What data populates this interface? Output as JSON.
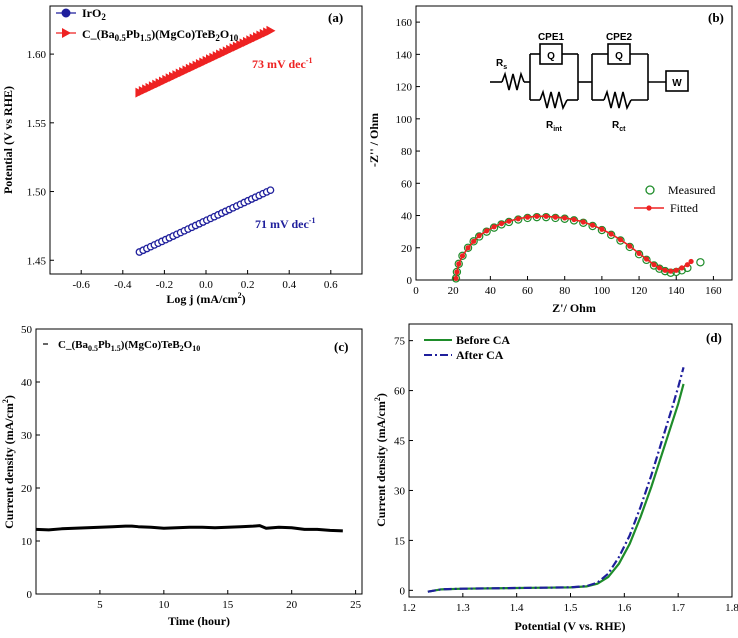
{
  "colors": {
    "navy": "#1f1f9c",
    "red": "#ee2222",
    "green": "#1e8c2a",
    "black": "#000000"
  },
  "chart_data": [
    {
      "id": "a",
      "type": "scatter",
      "panel_label": "(a)",
      "xlabel": "Log j (mA/cm",
      "xlabel_sup": "2",
      "xlabel_end": ")",
      "ylabel": "Potential (V vs RHE)",
      "xlim": [
        -0.75,
        0.75
      ],
      "ylim": [
        1.44,
        1.635
      ],
      "xticks": [
        "-0.6",
        "-0.4",
        "-0.2",
        "0.0",
        "0.2",
        "0.4",
        "0.6"
      ],
      "xtick_values": [
        -0.6,
        -0.4,
        -0.2,
        0.0,
        0.2,
        0.4,
        0.6
      ],
      "yticks": [
        "1.45",
        "1.50",
        "1.55",
        "1.60"
      ],
      "ytick_values": [
        1.45,
        1.5,
        1.55,
        1.6
      ],
      "series": [
        {
          "name": "IrO",
          "name_sub": "2",
          "color": "#1f1f9c",
          "marker": "circle",
          "x_start": -0.32,
          "y_start": 1.456,
          "x_end": 0.31,
          "y_end": 1.501,
          "n_points": 36,
          "annotation": "71 mV dec",
          "annotation_sup": "-1"
        },
        {
          "name": "C_(Ba0.5Pb1.5)(MgCo)TeB2O10",
          "color": "#ee2222",
          "marker": "triangle-right",
          "x_start": -0.32,
          "y_start": 1.572,
          "x_end": 0.31,
          "y_end": 1.617,
          "n_points": 40,
          "annotation": "73 mV dec",
          "annotation_sup": "-1"
        }
      ]
    },
    {
      "id": "b",
      "type": "scatter",
      "panel_label": "(b)",
      "xlabel": "Z'/ Ohm",
      "ylabel": "-Z'' / Ohm",
      "xlim": [
        0,
        170
      ],
      "ylim": [
        0,
        170
      ],
      "xticks": [
        "0",
        "20",
        "40",
        "60",
        "80",
        "100",
        "120",
        "140",
        "160"
      ],
      "xtick_values": [
        0,
        20,
        40,
        60,
        80,
        100,
        120,
        140,
        160
      ],
      "yticks": [
        "0",
        "20",
        "40",
        "60",
        "80",
        "100",
        "120",
        "140",
        "160"
      ],
      "ytick_values": [
        0,
        20,
        40,
        60,
        80,
        100,
        120,
        140,
        160
      ],
      "series": [
        {
          "name": "Measured",
          "color": "#1e8c2a",
          "marker": "open-circle",
          "x": [
            21.5,
            22,
            23,
            25,
            28,
            31,
            34,
            38,
            42,
            46,
            50,
            55,
            60,
            65,
            70,
            75,
            80,
            85,
            90,
            95,
            100,
            105,
            110,
            115,
            120,
            124,
            128,
            131,
            134,
            137,
            140,
            143,
            146,
            153
          ],
          "y": [
            1,
            5,
            10,
            15,
            20,
            24,
            27,
            30,
            32.5,
            34.5,
            36,
            37.5,
            38.5,
            39,
            39,
            38.5,
            38,
            37,
            35.5,
            33.5,
            31,
            28,
            24.5,
            20.5,
            16,
            12.5,
            9,
            7,
            5.5,
            4.5,
            5,
            6,
            7.5,
            11
          ]
        },
        {
          "name": "Fitted",
          "color": "#ee2222",
          "marker": "dot-line",
          "x": [
            21.5,
            22,
            23,
            25,
            28,
            31,
            34,
            38,
            42,
            46,
            50,
            55,
            60,
            65,
            70,
            75,
            80,
            85,
            90,
            95,
            100,
            105,
            110,
            115,
            120,
            124,
            128,
            131,
            134,
            137,
            140,
            143,
            146,
            148
          ],
          "y": [
            1,
            5,
            10,
            15,
            20,
            24,
            27.5,
            30.5,
            33,
            35,
            36.5,
            38,
            39,
            39.5,
            39.5,
            39,
            38.5,
            37.5,
            36,
            34,
            31.5,
            28.5,
            25,
            21,
            16.5,
            13,
            9.5,
            7.5,
            6,
            5.5,
            6,
            7.5,
            9.5,
            11.5
          ]
        }
      ],
      "circuit": {
        "rs": "R",
        "rs_sub": "s",
        "cpe1": "CPE1",
        "cpe2": "CPE2",
        "q": "Q",
        "rint": "R",
        "rint_sub": "int",
        "rct": "R",
        "rct_sub": "ct",
        "w": "W"
      }
    },
    {
      "id": "c",
      "type": "line",
      "panel_label": "(c)",
      "xlabel": "Time (hour)",
      "ylabel": "Current density (mA/cm",
      "ylabel_sup": "2",
      "ylabel_end": ")",
      "xlim": [
        0,
        25.5
      ],
      "ylim": [
        0,
        50
      ],
      "xticks": [
        "5",
        "10",
        "15",
        "20",
        "25"
      ],
      "xtick_values": [
        5,
        10,
        15,
        20,
        25
      ],
      "yticks": [
        "0",
        "10",
        "20",
        "30",
        "40",
        "50"
      ],
      "ytick_values": [
        0,
        10,
        20,
        30,
        40,
        50
      ],
      "series": [
        {
          "name": "C_(Ba0.5Pb1.5)(MgCo)TeB2O10",
          "color": "#000000",
          "x": [
            0,
            1,
            2,
            3,
            4,
            5,
            6,
            7,
            7.5,
            8,
            9,
            10,
            11,
            12,
            13,
            14,
            15,
            16,
            17,
            17.5,
            18,
            19,
            20,
            21,
            22,
            23,
            24
          ],
          "y": [
            12.2,
            12.1,
            12.3,
            12.4,
            12.5,
            12.6,
            12.7,
            12.8,
            12.8,
            12.7,
            12.6,
            12.4,
            12.5,
            12.6,
            12.6,
            12.5,
            12.6,
            12.7,
            12.8,
            12.9,
            12.4,
            12.6,
            12.5,
            12.2,
            12.2,
            12.0,
            11.9
          ]
        }
      ]
    },
    {
      "id": "d",
      "type": "line",
      "panel_label": "(d)",
      "xlabel": "Potential (V vs. RHE)",
      "ylabel": "Current density (mA/cm",
      "ylabel_sup": "2",
      "ylabel_end": ")",
      "xlim": [
        1.2,
        1.8
      ],
      "ylim": [
        -2,
        80
      ],
      "xticks": [
        "1.2",
        "1.3",
        "1.4",
        "1.5",
        "1.6",
        "1.7",
        "1.8"
      ],
      "xtick_values": [
        1.2,
        1.3,
        1.4,
        1.5,
        1.6,
        1.7,
        1.8
      ],
      "yticks": [
        "0",
        "15",
        "30",
        "45",
        "60",
        "75"
      ],
      "ytick_values": [
        0,
        15,
        30,
        45,
        60,
        75
      ],
      "series": [
        {
          "name": "Before CA",
          "color": "#1e8c2a",
          "dash": "solid",
          "x": [
            1.235,
            1.26,
            1.3,
            1.35,
            1.4,
            1.45,
            1.5,
            1.53,
            1.55,
            1.57,
            1.59,
            1.61,
            1.63,
            1.65,
            1.67,
            1.69,
            1.7,
            1.71
          ],
          "y": [
            -0.4,
            0.3,
            0.5,
            0.6,
            0.7,
            0.8,
            0.9,
            1.2,
            2,
            4,
            8,
            14,
            22,
            31,
            41,
            51,
            56,
            62
          ]
        },
        {
          "name": "After CA",
          "color": "#1f1f9c",
          "dash": "dashdot",
          "x": [
            1.235,
            1.26,
            1.3,
            1.35,
            1.4,
            1.45,
            1.5,
            1.53,
            1.55,
            1.57,
            1.59,
            1.61,
            1.63,
            1.65,
            1.67,
            1.69,
            1.7,
            1.71
          ],
          "y": [
            -0.4,
            0.3,
            0.5,
            0.6,
            0.7,
            0.8,
            0.9,
            1.3,
            2.3,
            5,
            10,
            16.5,
            25,
            34.5,
            45,
            55.5,
            61,
            67
          ]
        }
      ]
    }
  ]
}
